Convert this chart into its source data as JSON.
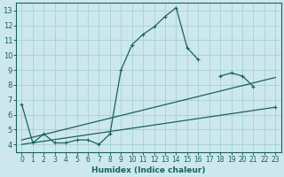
{
  "xlabel": "Humidex (Indice chaleur)",
  "bg_color": "#cce8ec",
  "grid_color": "#aad4d8",
  "line_color": "#1a6060",
  "xlim": [
    -0.5,
    23.5
  ],
  "ylim": [
    3.5,
    13.5
  ],
  "xticks": [
    0,
    1,
    2,
    3,
    4,
    5,
    6,
    7,
    8,
    9,
    10,
    11,
    12,
    13,
    14,
    15,
    16,
    17,
    18,
    19,
    20,
    21,
    22,
    23
  ],
  "yticks": [
    4,
    5,
    6,
    7,
    8,
    9,
    10,
    11,
    12,
    13
  ],
  "line1_x": [
    0,
    1,
    2,
    3,
    4,
    5,
    6,
    7,
    8,
    9,
    10,
    11,
    12,
    13,
    14,
    15,
    16,
    17,
    18,
    19,
    20,
    21,
    22,
    23
  ],
  "line1_y": [
    6.7,
    4.1,
    4.7,
    4.1,
    4.1,
    4.3,
    4.3,
    4.0,
    4.7,
    9.0,
    10.7,
    11.4,
    11.9,
    12.6,
    13.2,
    10.5,
    9.7,
    null,
    8.6,
    8.8,
    8.6,
    7.9,
    null,
    6.5
  ],
  "line2_x": [
    0,
    23
  ],
  "line2_y": [
    4.3,
    8.5
  ],
  "line3_x": [
    0,
    23
  ],
  "line3_y": [
    4.0,
    6.5
  ]
}
